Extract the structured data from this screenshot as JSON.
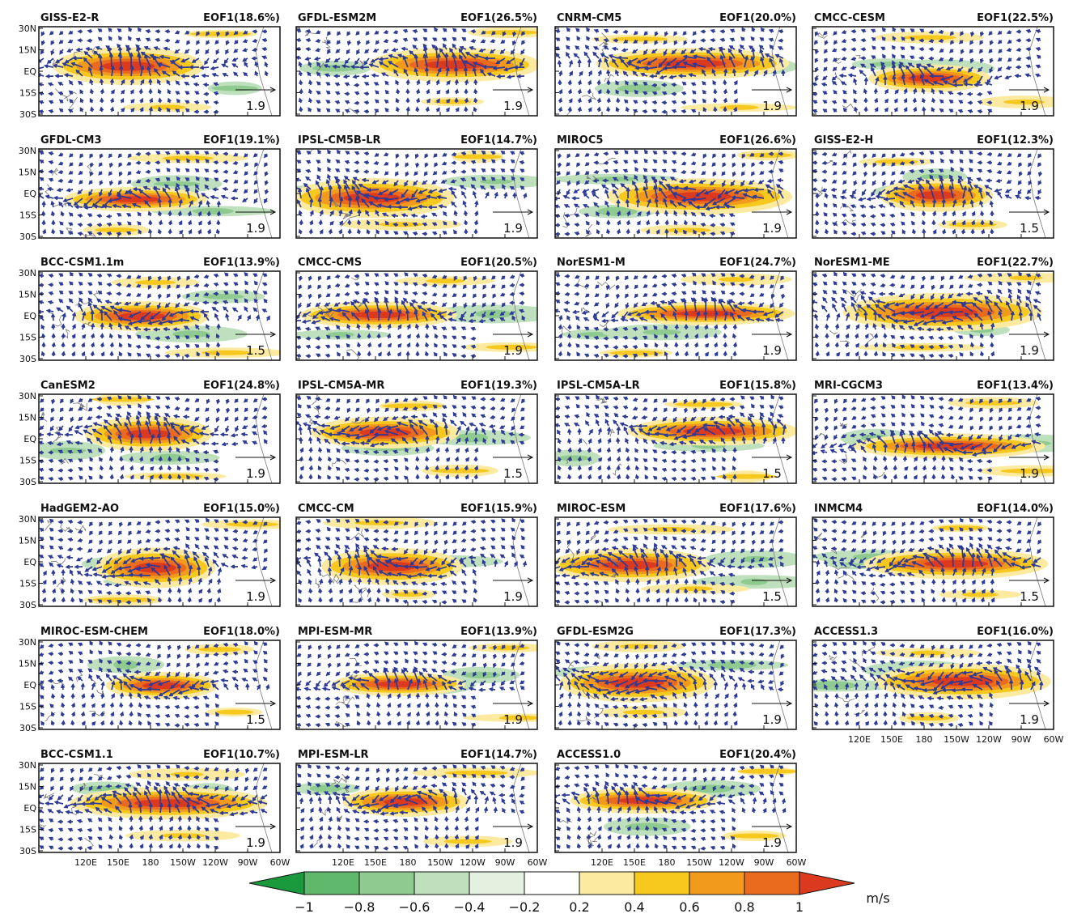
{
  "panels": [
    {
      "title": "GISS-E2-R",
      "eof": "EOF1(18.6%)",
      "ref": "1.9"
    },
    {
      "title": "GFDL-ESM2M",
      "eof": "EOF1(26.5%)",
      "ref": "1.9"
    },
    {
      "title": "CNRM-CM5",
      "eof": "EOF1(20.0%)",
      "ref": "1.9"
    },
    {
      "title": "CMCC-CESM",
      "eof": "EOF1(22.5%)",
      "ref": "1.9"
    },
    {
      "title": "GFDL-CM3",
      "eof": "EOF1(19.1%)",
      "ref": "1.9"
    },
    {
      "title": "IPSL-CM5B-LR",
      "eof": "EOF1(14.7%)",
      "ref": "1.9"
    },
    {
      "title": "MIROC5",
      "eof": "EOF1(26.6%)",
      "ref": "1.9"
    },
    {
      "title": "GISS-E2-H",
      "eof": "EOF1(12.3%)",
      "ref": "1.5"
    },
    {
      "title": "BCC-CSM1.1m",
      "eof": "EOF1(13.9%)",
      "ref": "1.5"
    },
    {
      "title": "CMCC-CMS",
      "eof": "EOF1(20.5%)",
      "ref": "1.9"
    },
    {
      "title": "NorESM1-M",
      "eof": "EOF1(24.7%)",
      "ref": "1.9"
    },
    {
      "title": "NorESM1-ME",
      "eof": "EOF1(22.7%)",
      "ref": "1.9"
    },
    {
      "title": "CanESM2",
      "eof": "EOF1(24.8%)",
      "ref": "1.9"
    },
    {
      "title": "IPSL-CM5A-MR",
      "eof": "EOF1(19.3%)",
      "ref": "1.5"
    },
    {
      "title": "IPSL-CM5A-LR",
      "eof": "EOF1(15.8%)",
      "ref": "1.5"
    },
    {
      "title": "MRI-CGCM3",
      "eof": "EOF1(13.4%)",
      "ref": "1.9"
    },
    {
      "title": "HadGEM2-AO",
      "eof": "EOF1(15.0%)",
      "ref": "1.9"
    },
    {
      "title": "CMCC-CM",
      "eof": "EOF1(15.9%)",
      "ref": "1.9"
    },
    {
      "title": "MIROC-ESM",
      "eof": "EOF1(17.6%)",
      "ref": "1.5"
    },
    {
      "title": "INMCM4",
      "eof": "EOF1(14.0%)",
      "ref": "1.5"
    },
    {
      "title": "MIROC-ESM-CHEM",
      "eof": "EOF1(18.0%)",
      "ref": "1.5"
    },
    {
      "title": "MPI-ESM-MR",
      "eof": "EOF1(13.9%)",
      "ref": "1.9"
    },
    {
      "title": "GFDL-ESM2G",
      "eof": "EOF1(17.3%)",
      "ref": "1.9"
    },
    {
      "title": "ACCESS1.3",
      "eof": "EOF1(16.0%)",
      "ref": "1.9"
    },
    {
      "title": "BCC-CSM1.1",
      "eof": "EOF1(10.7%)",
      "ref": "1.9"
    },
    {
      "title": "MPI-ESM-LR",
      "eof": "EOF1(14.7%)",
      "ref": "1.9"
    },
    {
      "title": "ACCESS1.0",
      "eof": "EOF1(20.4%)",
      "ref": "1.9"
    }
  ],
  "lat_labels": [
    "30N",
    "15N",
    "EQ",
    "15S",
    "30S"
  ],
  "lon_labels": [
    "120E",
    "150E",
    "180",
    "150W",
    "120W",
    "90W",
    "60W"
  ],
  "colorbar": {
    "labels": [
      "−1",
      "−0.8",
      "−0.6",
      "−0.4",
      "−0.2",
      "0.2",
      "0.4",
      "0.6",
      "0.8",
      "1"
    ],
    "colors": [
      "#1a9a3c",
      "#5fb86b",
      "#8fcb90",
      "#bfe0bc",
      "#e4f1e0",
      "#ffffff",
      "#fbeaa0",
      "#f7c81e",
      "#f29a1c",
      "#ea6a1e",
      "#dc3a1e"
    ],
    "unit": "m/s"
  }
}
